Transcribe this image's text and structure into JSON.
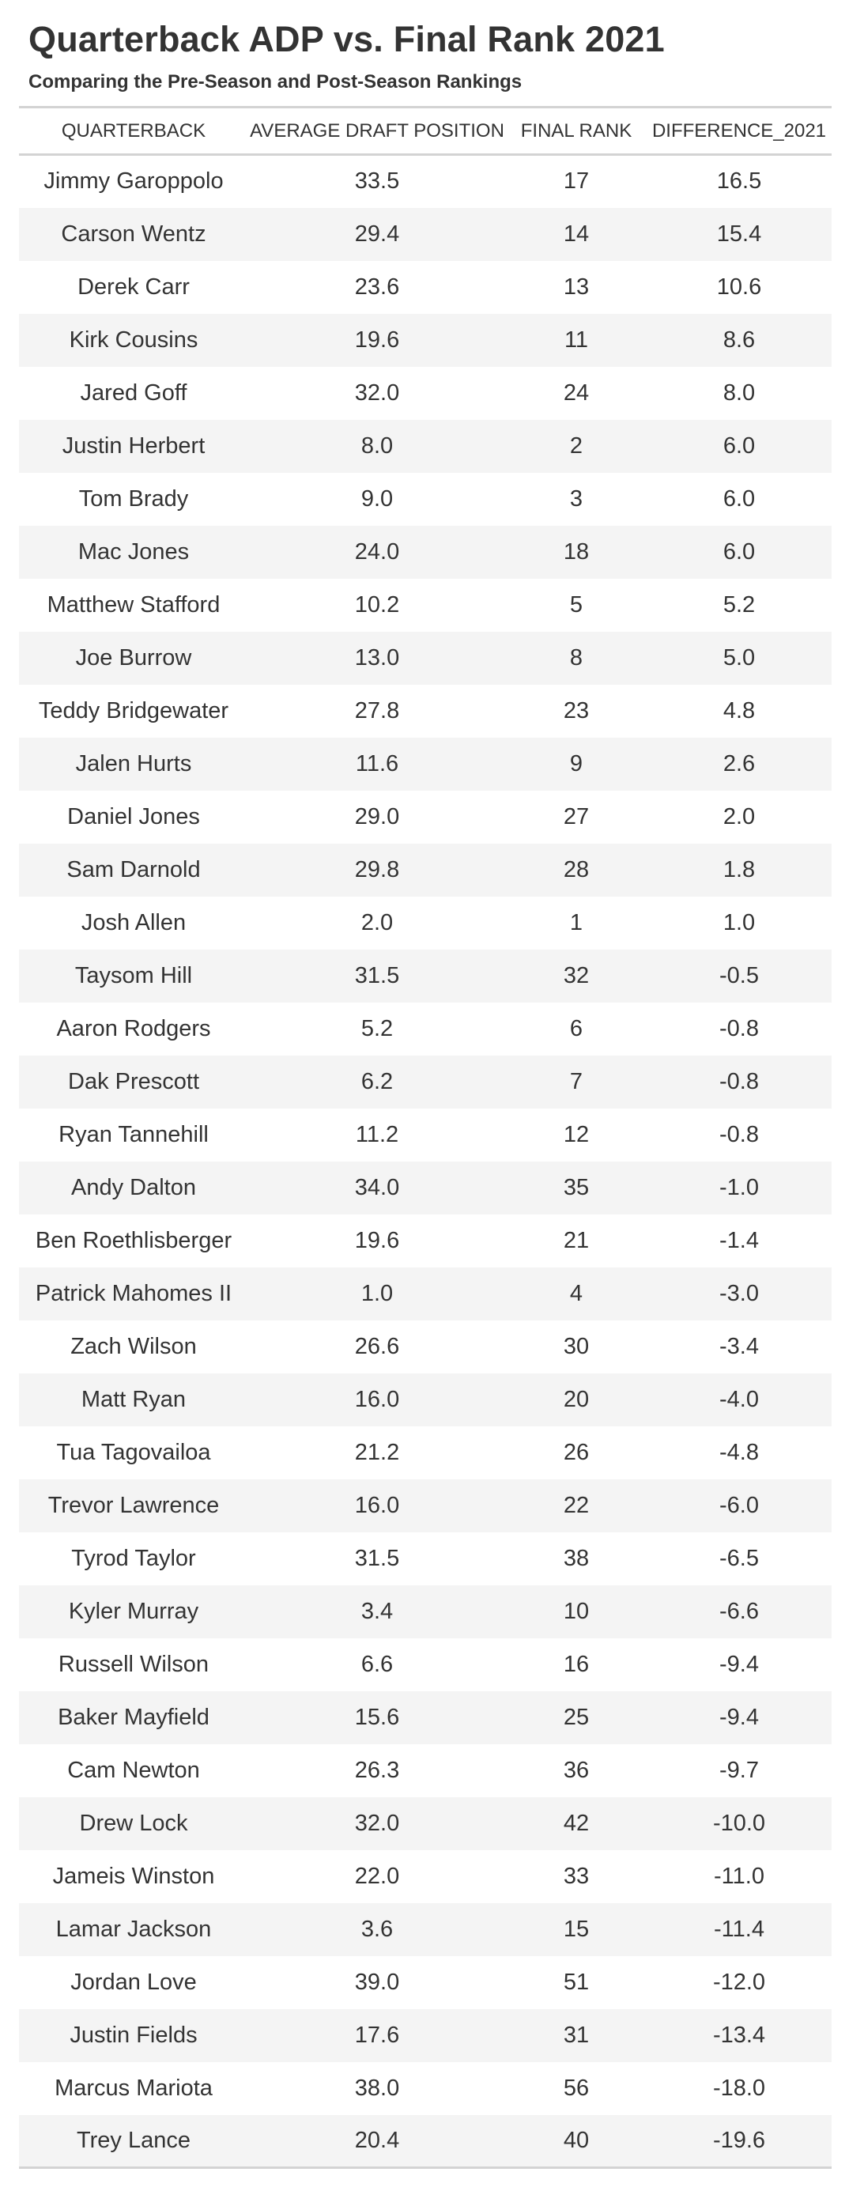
{
  "title": "Quarterback ADP vs. Final Rank 2021",
  "subtitle": "Comparing the Pre-Season and Post-Season Rankings",
  "columns": [
    "QUARTERBACK",
    "AVERAGE DRAFT POSITION",
    "FINAL RANK",
    "DIFFERENCE_2021"
  ],
  "rows": [
    {
      "quarterback": "Jimmy Garoppolo",
      "adp": "33.5",
      "final_rank": "17",
      "difference": "16.5"
    },
    {
      "quarterback": "Carson Wentz",
      "adp": "29.4",
      "final_rank": "14",
      "difference": "15.4"
    },
    {
      "quarterback": "Derek Carr",
      "adp": "23.6",
      "final_rank": "13",
      "difference": "10.6"
    },
    {
      "quarterback": "Kirk Cousins",
      "adp": "19.6",
      "final_rank": "11",
      "difference": "8.6"
    },
    {
      "quarterback": "Jared Goff",
      "adp": "32.0",
      "final_rank": "24",
      "difference": "8.0"
    },
    {
      "quarterback": "Justin Herbert",
      "adp": "8.0",
      "final_rank": "2",
      "difference": "6.0"
    },
    {
      "quarterback": "Tom Brady",
      "adp": "9.0",
      "final_rank": "3",
      "difference": "6.0"
    },
    {
      "quarterback": "Mac Jones",
      "adp": "24.0",
      "final_rank": "18",
      "difference": "6.0"
    },
    {
      "quarterback": "Matthew Stafford",
      "adp": "10.2",
      "final_rank": "5",
      "difference": "5.2"
    },
    {
      "quarterback": "Joe Burrow",
      "adp": "13.0",
      "final_rank": "8",
      "difference": "5.0"
    },
    {
      "quarterback": "Teddy Bridgewater",
      "adp": "27.8",
      "final_rank": "23",
      "difference": "4.8"
    },
    {
      "quarterback": "Jalen Hurts",
      "adp": "11.6",
      "final_rank": "9",
      "difference": "2.6"
    },
    {
      "quarterback": "Daniel Jones",
      "adp": "29.0",
      "final_rank": "27",
      "difference": "2.0"
    },
    {
      "quarterback": "Sam Darnold",
      "adp": "29.8",
      "final_rank": "28",
      "difference": "1.8"
    },
    {
      "quarterback": "Josh Allen",
      "adp": "2.0",
      "final_rank": "1",
      "difference": "1.0"
    },
    {
      "quarterback": "Taysom Hill",
      "adp": "31.5",
      "final_rank": "32",
      "difference": "-0.5"
    },
    {
      "quarterback": "Aaron Rodgers",
      "adp": "5.2",
      "final_rank": "6",
      "difference": "-0.8"
    },
    {
      "quarterback": "Dak Prescott",
      "adp": "6.2",
      "final_rank": "7",
      "difference": "-0.8"
    },
    {
      "quarterback": "Ryan Tannehill",
      "adp": "11.2",
      "final_rank": "12",
      "difference": "-0.8"
    },
    {
      "quarterback": "Andy Dalton",
      "adp": "34.0",
      "final_rank": "35",
      "difference": "-1.0"
    },
    {
      "quarterback": "Ben Roethlisberger",
      "adp": "19.6",
      "final_rank": "21",
      "difference": "-1.4"
    },
    {
      "quarterback": "Patrick Mahomes II",
      "adp": "1.0",
      "final_rank": "4",
      "difference": "-3.0"
    },
    {
      "quarterback": "Zach Wilson",
      "adp": "26.6",
      "final_rank": "30",
      "difference": "-3.4"
    },
    {
      "quarterback": "Matt Ryan",
      "adp": "16.0",
      "final_rank": "20",
      "difference": "-4.0"
    },
    {
      "quarterback": "Tua Tagovailoa",
      "adp": "21.2",
      "final_rank": "26",
      "difference": "-4.8"
    },
    {
      "quarterback": "Trevor Lawrence",
      "adp": "16.0",
      "final_rank": "22",
      "difference": "-6.0"
    },
    {
      "quarterback": "Tyrod Taylor",
      "adp": "31.5",
      "final_rank": "38",
      "difference": "-6.5"
    },
    {
      "quarterback": "Kyler Murray",
      "adp": "3.4",
      "final_rank": "10",
      "difference": "-6.6"
    },
    {
      "quarterback": "Russell Wilson",
      "adp": "6.6",
      "final_rank": "16",
      "difference": "-9.4"
    },
    {
      "quarterback": "Baker Mayfield",
      "adp": "15.6",
      "final_rank": "25",
      "difference": "-9.4"
    },
    {
      "quarterback": "Cam Newton",
      "adp": "26.3",
      "final_rank": "36",
      "difference": "-9.7"
    },
    {
      "quarterback": "Drew Lock",
      "adp": "32.0",
      "final_rank": "42",
      "difference": "-10.0"
    },
    {
      "quarterback": "Jameis Winston",
      "adp": "22.0",
      "final_rank": "33",
      "difference": "-11.0"
    },
    {
      "quarterback": "Lamar Jackson",
      "adp": "3.6",
      "final_rank": "15",
      "difference": "-11.4"
    },
    {
      "quarterback": "Jordan Love",
      "adp": "39.0",
      "final_rank": "51",
      "difference": "-12.0"
    },
    {
      "quarterback": "Justin Fields",
      "adp": "17.6",
      "final_rank": "31",
      "difference": "-13.4"
    },
    {
      "quarterback": "Marcus Mariota",
      "adp": "38.0",
      "final_rank": "56",
      "difference": "-18.0"
    },
    {
      "quarterback": "Trey Lance",
      "adp": "20.4",
      "final_rank": "40",
      "difference": "-19.6"
    }
  ],
  "colors": {
    "text": "#333333",
    "rule": "#d3d3d3",
    "stripe": "#f4f4f4",
    "background": "#ffffff"
  }
}
